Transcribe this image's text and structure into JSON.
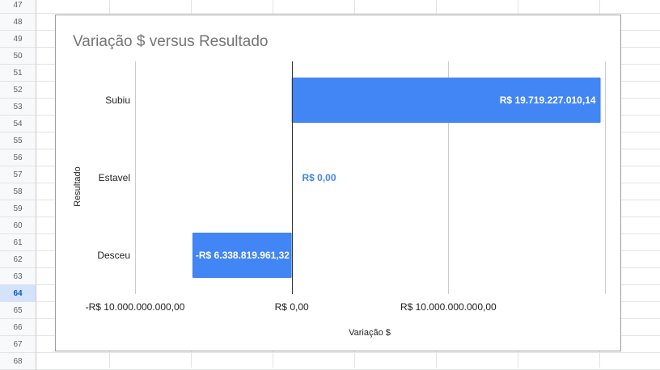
{
  "sheet": {
    "row_numbers": [
      "47",
      "48",
      "49",
      "50",
      "51",
      "52",
      "53",
      "54",
      "55",
      "56",
      "57",
      "58",
      "59",
      "60",
      "61",
      "62",
      "63",
      "64",
      "65",
      "66",
      "67",
      "68"
    ],
    "active_row": "64"
  },
  "chart_data": {
    "type": "bar",
    "orientation": "horizontal",
    "title": "Variação $ versus Resultado",
    "xlabel": "Variação $",
    "ylabel": "Resultado",
    "categories": [
      "Subiu",
      "Estavel",
      "Desceu"
    ],
    "values": [
      19719227010.14,
      0,
      -6338819961.32
    ],
    "data_labels": [
      "R$ 19.719.227.010,14",
      "R$ 0,00",
      "-R$ 6.338.819.961,32"
    ],
    "x_ticks": [
      -10000000000,
      0,
      10000000000,
      20000000000
    ],
    "x_tick_labels": [
      "-R$ 10.000.000.000,00",
      "R$ 0,00",
      "R$ 10.000.000.000,00",
      ""
    ],
    "xlim": [
      -10000000000,
      20000000000
    ],
    "bar_color": "#4285f4",
    "gridlines": true,
    "legend": "none"
  }
}
